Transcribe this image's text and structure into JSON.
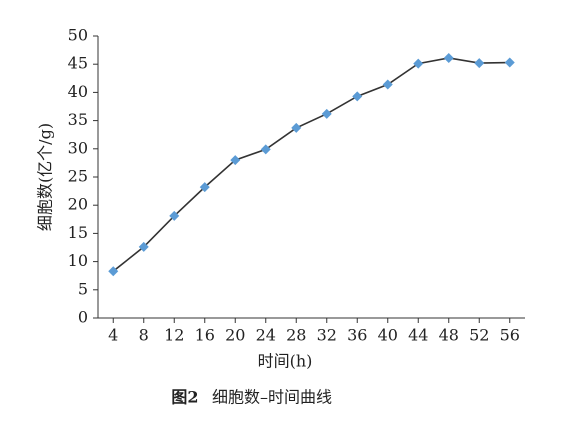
{
  "chart_data": {
    "type": "line",
    "x": [
      4,
      8,
      12,
      16,
      20,
      24,
      28,
      32,
      36,
      40,
      44,
      48,
      52,
      56
    ],
    "series": [
      {
        "name": "细胞数",
        "color": "#5b9bd5",
        "line_color": "#333333",
        "values": [
          8.3,
          12.6,
          18.1,
          23.2,
          28.0,
          29.9,
          33.7,
          36.2,
          39.3,
          41.4,
          45.1,
          46.1,
          45.2,
          45.3
        ]
      }
    ],
    "xlim": [
      2,
      58
    ],
    "xticks": [
      4,
      8,
      12,
      16,
      20,
      24,
      28,
      32,
      36,
      40,
      44,
      48,
      52,
      56
    ],
    "ylim": [
      0,
      50
    ],
    "yticks": [
      0,
      5,
      10,
      15,
      20,
      25,
      30,
      35,
      40,
      45,
      50
    ],
    "x_label": "时间(h)",
    "y_label": "细胞数(亿个/g)",
    "caption_number": "图2",
    "caption_text": "细胞数–时间曲线",
    "grid": false
  }
}
